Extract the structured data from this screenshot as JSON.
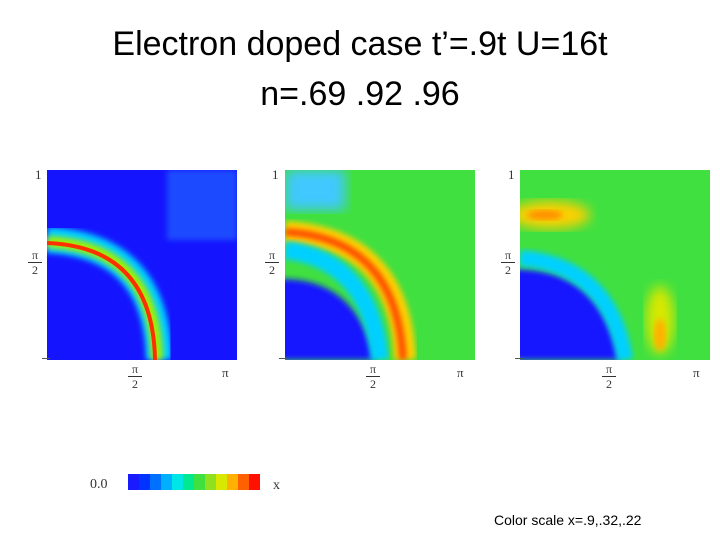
{
  "title_line1": "Electron doped case t’=.9t U=16t",
  "title_line2": "n=.69 .92 .96",
  "ticks": {
    "one": "1",
    "pi": "π",
    "pi_half_num": "π",
    "pi_half_den": "2"
  },
  "panels": [
    {
      "n": ".69"
    },
    {
      "n": ".92"
    },
    {
      "n": ".96"
    }
  ],
  "legend": {
    "low": "0.0",
    "var": "x",
    "colors": [
      "#1a1aff",
      "#0033ff",
      "#0070ff",
      "#00b0ff",
      "#00e5e5",
      "#00e890",
      "#40e040",
      "#90e020",
      "#d8e800",
      "#ffb000",
      "#ff6000",
      "#ff1000"
    ]
  },
  "caption": "Color scale x=.9,.32,.22"
}
